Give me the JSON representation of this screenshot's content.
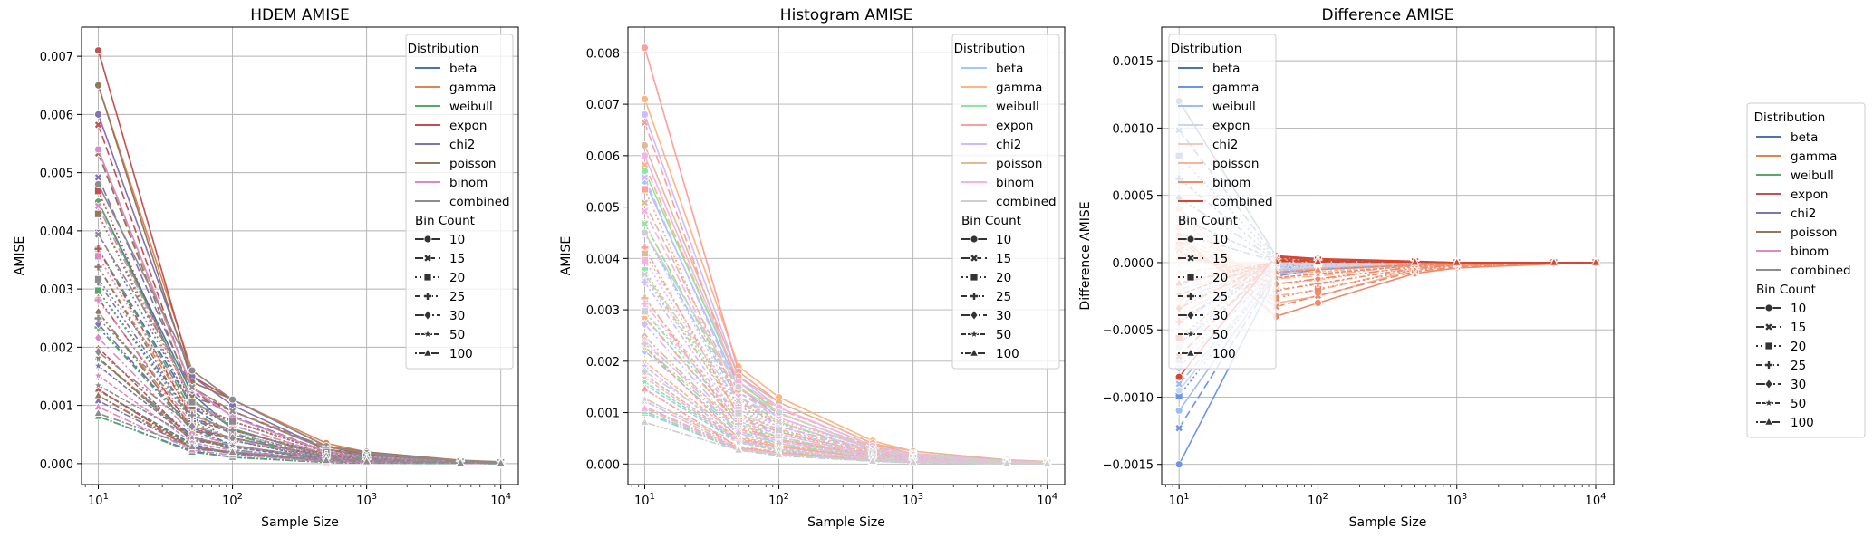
{
  "chart_data": [
    {
      "type": "line",
      "title": "HDEM AMISE",
      "xlabel": "Sample Size",
      "ylabel": "AMISE",
      "xscale": "log",
      "xlim": [
        7.5,
        13500
      ],
      "ylim": [
        -0.00036,
        0.0075
      ],
      "x_ticks": [
        10,
        100,
        1000,
        10000
      ],
      "y_ticks": [
        0.0,
        0.001,
        0.002,
        0.003,
        0.004,
        0.005,
        0.006,
        0.007
      ],
      "y_tick_labels": [
        "0.000",
        "0.001",
        "0.002",
        "0.003",
        "0.004",
        "0.005",
        "0.006",
        "0.007"
      ],
      "grid": true,
      "legend_position": "top-right",
      "x": [
        10,
        50,
        100,
        500,
        1000,
        5000,
        10000
      ],
      "series": [
        {
          "name": "beta",
          "color": "#4c72b0",
          "values": [
            0.0045,
            0.0012,
            0.0006,
            0.00012,
            6e-05,
            1.2e-05,
            6e-06
          ]
        },
        {
          "name": "gamma",
          "color": "#dd8452",
          "values": [
            0.0065,
            0.0016,
            0.0011,
            0.00035,
            0.0002,
            6e-05,
            3e-05
          ]
        },
        {
          "name": "weibull",
          "color": "#55a868",
          "values": [
            0.0045,
            0.0011,
            0.0006,
            0.00012,
            6e-05,
            1.2e-05,
            6e-06
          ]
        },
        {
          "name": "expon",
          "color": "#c44e52",
          "values": [
            0.0071,
            0.0015,
            0.0011,
            0.0003,
            0.00015,
            3e-05,
            1.5e-05
          ]
        },
        {
          "name": "chi2",
          "color": "#8172b3",
          "values": [
            0.006,
            0.0015,
            0.001,
            0.00025,
            0.00013,
            3e-05,
            1.5e-05
          ]
        },
        {
          "name": "poisson",
          "color": "#937860",
          "values": [
            0.0065,
            0.0014,
            0.0011,
            0.0003,
            0.0002,
            5e-05,
            3e-05
          ]
        },
        {
          "name": "binom",
          "color": "#da8bc3",
          "values": [
            0.0054,
            0.0013,
            0.0008,
            0.0002,
            0.00012,
            3e-05,
            2e-05
          ]
        },
        {
          "name": "combined",
          "color": "#8c8c8c",
          "values": [
            0.0048,
            0.0016,
            0.0011,
            0.0003,
            0.00018,
            5e-05,
            3e-05
          ]
        }
      ],
      "legend": {
        "hue_title": "Distribution",
        "hue_entries": [
          "beta",
          "gamma",
          "weibull",
          "expon",
          "chi2",
          "poisson",
          "binom",
          "combined"
        ],
        "hue_colors": [
          "#4c72b0",
          "#dd8452",
          "#55a868",
          "#c44e52",
          "#8172b3",
          "#937860",
          "#da8bc3",
          "#8c8c8c"
        ],
        "style_title": "Bin Count",
        "style_entries": [
          "10",
          "15",
          "20",
          "25",
          "30",
          "50",
          "100"
        ]
      }
    },
    {
      "type": "line",
      "title": "Histogram AMISE",
      "xlabel": "Sample Size",
      "ylabel": "AMISE",
      "xscale": "log",
      "xlim": [
        7.5,
        13500
      ],
      "ylim": [
        -0.0004,
        0.0085
      ],
      "x_ticks": [
        10,
        100,
        1000,
        10000
      ],
      "y_ticks": [
        0.0,
        0.001,
        0.002,
        0.003,
        0.004,
        0.005,
        0.006,
        0.007,
        0.008
      ],
      "y_tick_labels": [
        "0.000",
        "0.001",
        "0.002",
        "0.003",
        "0.004",
        "0.005",
        "0.006",
        "0.007",
        "0.008"
      ],
      "grid": true,
      "legend_position": "top-right",
      "x": [
        10,
        50,
        100,
        500,
        1000,
        5000,
        10000
      ],
      "series": [
        {
          "name": "beta",
          "color": "#a1c9f4",
          "values": [
            0.0055,
            0.0015,
            0.0009,
            0.0003,
            0.00015,
            4e-05,
            2e-05
          ]
        },
        {
          "name": "gamma",
          "color": "#ffb482",
          "values": [
            0.0071,
            0.0019,
            0.0013,
            0.00045,
            0.00025,
            8e-05,
            5e-05
          ]
        },
        {
          "name": "weibull",
          "color": "#8de5a1",
          "values": [
            0.0057,
            0.0016,
            0.001,
            0.0003,
            0.00015,
            4e-05,
            2e-05
          ]
        },
        {
          "name": "expon",
          "color": "#ff9f9b",
          "values": [
            0.0081,
            0.0018,
            0.0012,
            0.0004,
            0.0002,
            6e-05,
            3e-05
          ]
        },
        {
          "name": "chi2",
          "color": "#d0bbff",
          "values": [
            0.0068,
            0.0017,
            0.0011,
            0.00035,
            0.0002,
            5e-05,
            3e-05
          ]
        },
        {
          "name": "poisson",
          "color": "#debb9b",
          "values": [
            0.0062,
            0.0017,
            0.0012,
            0.0004,
            0.00025,
            8e-05,
            5e-05
          ]
        },
        {
          "name": "binom",
          "color": "#fab0e4",
          "values": [
            0.006,
            0.0016,
            0.0011,
            0.00035,
            0.0002,
            6e-05,
            4e-05
          ]
        },
        {
          "name": "combined",
          "color": "#cfcfcf",
          "values": [
            0.0045,
            0.0015,
            0.001,
            0.0003,
            0.00018,
            5e-05,
            3e-05
          ]
        }
      ],
      "legend": {
        "hue_title": "Distribution",
        "hue_entries": [
          "beta",
          "gamma",
          "weibull",
          "expon",
          "chi2",
          "poisson",
          "binom",
          "combined"
        ],
        "hue_colors": [
          "#a1c9f4",
          "#ffb482",
          "#8de5a1",
          "#ff9f9b",
          "#d0bbff",
          "#debb9b",
          "#fab0e4",
          "#cfcfcf"
        ],
        "style_title": "Bin Count",
        "style_entries": [
          "10",
          "15",
          "20",
          "25",
          "30",
          "50",
          "100"
        ]
      }
    },
    {
      "type": "line",
      "title": "Difference AMISE",
      "xlabel": "Sample Size",
      "ylabel": "Difference AMISE",
      "xscale": "log",
      "xlim": [
        7.5,
        13500
      ],
      "ylim": [
        -0.00165,
        0.00175
      ],
      "x_ticks": [
        10,
        100,
        1000,
        10000
      ],
      "y_ticks": [
        -0.0015,
        -0.001,
        -0.0005,
        0.0,
        0.0005,
        0.001,
        0.0015
      ],
      "y_tick_labels": [
        "−0.0015",
        "−0.0010",
        "−0.0005",
        "0.0000",
        "0.0005",
        "0.0010",
        "0.0015"
      ],
      "grid": true,
      "legend_position": "top-left",
      "x": [
        10,
        50,
        100,
        500,
        1000,
        5000,
        10000
      ],
      "series": [
        {
          "name": "beta",
          "color": "#4c72b0",
          "values": [
            0.0012,
            5e-05,
            2e-05,
            0.0,
            0.0,
            0.0,
            0.0
          ]
        },
        {
          "name": "gamma",
          "color": "#6d94ec",
          "values": [
            -0.0015,
            -0.0001,
            -5e-05,
            -2e-05,
            -1e-05,
            0.0,
            0.0
          ]
        },
        {
          "name": "weibull",
          "color": "#9bbcf5",
          "values": [
            -0.0011,
            -8e-05,
            -4e-05,
            -1e-05,
            0.0,
            0.0,
            0.0
          ]
        },
        {
          "name": "expon",
          "color": "#c9d6ee",
          "values": [
            -0.00095,
            -6e-05,
            -3e-05,
            -1e-05,
            0.0,
            0.0,
            0.0
          ]
        },
        {
          "name": "chi2",
          "color": "#eecdbf",
          "values": [
            -0.0004,
            3e-05,
            1e-05,
            0.0,
            0.0,
            0.0,
            0.0
          ]
        },
        {
          "name": "poisson",
          "color": "#f7b597",
          "values": [
            0.0004,
            -0.0003,
            -0.00025,
            -5e-05,
            -2e-05,
            0.0,
            0.0
          ]
        },
        {
          "name": "binom",
          "color": "#ec8a6b",
          "values": [
            0.0002,
            -0.0004,
            -0.0003,
            -8e-05,
            -4e-05,
            -1e-05,
            0.0
          ]
        },
        {
          "name": "combined",
          "color": "#d6452e",
          "values": [
            -0.00085,
            5e-05,
            3e-05,
            1e-05,
            0.0,
            0.0,
            0.0
          ]
        }
      ],
      "legend": {
        "hue_title": "Distribution",
        "hue_entries": [
          "beta",
          "gamma",
          "weibull",
          "expon",
          "chi2",
          "poisson",
          "binom",
          "combined"
        ],
        "hue_colors": [
          "#4c72b0",
          "#6d94ec",
          "#9bbcf5",
          "#c9d6ee",
          "#eecdbf",
          "#f7b597",
          "#ec8a6b",
          "#d6452e"
        ],
        "style_title": "Bin Count",
        "style_entries": [
          "10",
          "15",
          "20",
          "25",
          "30",
          "50",
          "100"
        ]
      }
    }
  ],
  "outer_legend": {
    "hue_title": "Distribution",
    "hue_entries": [
      "beta",
      "gamma",
      "weibull",
      "expon",
      "chi2",
      "poisson",
      "binom",
      "combined"
    ],
    "hue_colors": [
      "#4c72b0",
      "#dd8452",
      "#55a868",
      "#c44e52",
      "#8172b3",
      "#937860",
      "#da8bc3",
      "#8c8c8c"
    ],
    "style_title": "Bin Count",
    "style_entries": [
      "10",
      "15",
      "20",
      "25",
      "30",
      "50",
      "100"
    ],
    "position": "right"
  }
}
